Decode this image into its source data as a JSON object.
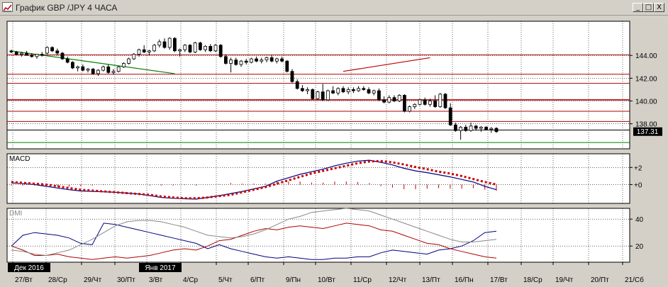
{
  "window": {
    "title": "График GBP /JPY  4 ЧАСА",
    "buttons": {
      "minimize": "_",
      "maximize": "□",
      "close": "X"
    }
  },
  "colors": {
    "up": "#ffffff",
    "down": "#000000",
    "resistance": "#b00000",
    "macd_line": "#000080",
    "signal": "#cc0000",
    "plus_di": "#000080",
    "minus_di": "#b00000",
    "adx": "#888888",
    "trend_green": "#008000",
    "trend_red": "#c00000"
  },
  "chart_data": [
    {
      "type": "candlestick",
      "pair": "GBP/JPY",
      "timeframe": "4 ЧАСА",
      "price_axis": {
        "ticks": [
          138,
          140,
          142,
          144
        ],
        "tick_labels": [
          "138.00",
          "140.00",
          "142.00",
          "144.00"
        ],
        "ylim": [
          135.8,
          147
        ]
      },
      "last_price": "137.31",
      "horizontal_levels": [
        144.05,
        142.35,
        141.55,
        140.1,
        139.1,
        138.2,
        137.45,
        136.35
      ],
      "trend_lines": [
        {
          "x0": 0,
          "y0": 144.4,
          "x1": 32,
          "y1": 142.4,
          "color": "trend_green"
        },
        {
          "x0": 65,
          "y0": 142.6,
          "x1": 82,
          "y1": 143.8,
          "color": "trend_red"
        }
      ],
      "candles": [
        [
          144.4,
          144.5,
          144.2,
          144.3
        ],
        [
          144.3,
          144.4,
          144.0,
          144.1
        ],
        [
          144.1,
          144.3,
          143.9,
          144.2
        ],
        [
          144.2,
          144.4,
          144.0,
          144.0
        ],
        [
          144.0,
          144.2,
          143.8,
          143.9
        ],
        [
          143.9,
          144.1,
          143.7,
          144.1
        ],
        [
          144.1,
          144.3,
          143.9,
          144.0
        ],
        [
          144.2,
          144.8,
          144.1,
          144.7
        ],
        [
          144.7,
          144.8,
          144.3,
          144.4
        ],
        [
          144.4,
          144.6,
          144.0,
          144.2
        ],
        [
          144.2,
          144.3,
          143.6,
          143.7
        ],
        [
          143.7,
          143.9,
          143.3,
          143.4
        ],
        [
          143.4,
          143.5,
          142.8,
          142.9
        ],
        [
          142.9,
          143.1,
          142.6,
          143.0
        ],
        [
          143.0,
          143.2,
          142.6,
          142.7
        ],
        [
          142.7,
          142.9,
          142.5,
          142.8
        ],
        [
          142.8,
          142.9,
          142.3,
          142.4
        ],
        [
          142.4,
          142.8,
          142.2,
          142.7
        ],
        [
          142.7,
          143.1,
          142.6,
          143.0
        ],
        [
          143.0,
          143.2,
          142.4,
          142.5
        ],
        [
          142.5,
          142.8,
          142.3,
          142.6
        ],
        [
          142.6,
          143.1,
          142.5,
          143.0
        ],
        [
          143.0,
          143.4,
          142.9,
          143.3
        ],
        [
          143.3,
          143.8,
          143.2,
          143.7
        ],
        [
          143.7,
          144.2,
          143.6,
          144.1
        ],
        [
          144.1,
          144.6,
          143.9,
          144.5
        ],
        [
          144.5,
          144.9,
          144.2,
          144.3
        ],
        [
          144.3,
          144.5,
          144.0,
          144.4
        ],
        [
          144.4,
          145.0,
          144.3,
          144.9
        ],
        [
          144.9,
          145.4,
          144.7,
          145.2
        ],
        [
          145.2,
          145.5,
          144.6,
          144.7
        ],
        [
          144.7,
          145.6,
          144.5,
          145.5
        ],
        [
          145.5,
          145.6,
          144.3,
          144.4
        ],
        [
          144.4,
          144.6,
          143.9,
          144.5
        ],
        [
          144.5,
          145.0,
          144.3,
          144.9
        ],
        [
          144.9,
          145.0,
          144.2,
          144.3
        ],
        [
          144.3,
          145.2,
          144.2,
          145.1
        ],
        [
          145.1,
          145.2,
          144.4,
          144.5
        ],
        [
          144.5,
          144.9,
          144.3,
          144.8
        ],
        [
          144.8,
          145.0,
          144.3,
          144.4
        ],
        [
          144.4,
          145.0,
          144.3,
          144.9
        ],
        [
          144.9,
          145.0,
          143.8,
          143.9
        ],
        [
          143.9,
          144.1,
          143.2,
          143.3
        ],
        [
          143.3,
          143.8,
          142.5,
          143.6
        ],
        [
          143.6,
          143.8,
          143.1,
          143.2
        ],
        [
          143.2,
          143.6,
          143.0,
          143.5
        ],
        [
          143.5,
          143.7,
          143.2,
          143.4
        ],
        [
          143.4,
          143.8,
          143.3,
          143.7
        ],
        [
          143.7,
          143.9,
          143.4,
          143.5
        ],
        [
          143.5,
          143.8,
          143.3,
          143.6
        ],
        [
          143.6,
          143.9,
          143.4,
          143.8
        ],
        [
          143.8,
          144.0,
          143.4,
          143.5
        ],
        [
          143.5,
          143.8,
          143.3,
          143.7
        ],
        [
          143.7,
          143.9,
          143.4,
          143.5
        ],
        [
          143.5,
          143.6,
          142.5,
          142.6
        ],
        [
          142.6,
          142.8,
          141.6,
          141.7
        ],
        [
          141.7,
          141.9,
          141.0,
          141.1
        ],
        [
          141.1,
          141.4,
          140.8,
          140.9
        ],
        [
          140.9,
          141.2,
          140.6,
          141.0
        ],
        [
          141.0,
          141.1,
          140.1,
          140.2
        ],
        [
          140.2,
          140.9,
          140.1,
          140.8
        ],
        [
          140.8,
          141.5,
          140.0,
          140.1
        ],
        [
          140.1,
          141.0,
          140.0,
          140.9
        ],
        [
          140.9,
          141.3,
          140.6,
          140.7
        ],
        [
          140.7,
          141.2,
          140.5,
          141.1
        ],
        [
          141.1,
          141.3,
          140.7,
          140.8
        ],
        [
          140.8,
          141.2,
          140.6,
          141.0
        ],
        [
          141.0,
          141.2,
          140.7,
          140.9
        ],
        [
          140.9,
          141.3,
          140.8,
          141.1
        ],
        [
          141.1,
          141.3,
          140.9,
          141.0
        ],
        [
          141.0,
          141.2,
          140.6,
          140.7
        ],
        [
          140.7,
          141.0,
          140.5,
          140.9
        ],
        [
          140.9,
          141.1,
          140.0,
          140.1
        ],
        [
          140.1,
          140.4,
          139.8,
          139.9
        ],
        [
          139.9,
          140.5,
          139.8,
          140.3
        ],
        [
          140.3,
          140.5,
          139.9,
          140.0
        ],
        [
          140.0,
          140.6,
          139.9,
          140.5
        ],
        [
          140.5,
          140.6,
          139.0,
          139.1
        ],
        [
          139.1,
          139.6,
          139.0,
          139.5
        ],
        [
          139.5,
          139.8,
          139.3,
          139.7
        ],
        [
          139.7,
          140.2,
          139.6,
          140.1
        ],
        [
          140.1,
          140.3,
          139.6,
          139.7
        ],
        [
          139.7,
          140.2,
          139.5,
          140.0
        ],
        [
          140.0,
          140.5,
          139.4,
          139.5
        ],
        [
          139.5,
          140.7,
          139.4,
          140.6
        ],
        [
          140.6,
          140.7,
          139.3,
          139.4
        ],
        [
          139.4,
          139.8,
          137.8,
          137.9
        ],
        [
          137.9,
          138.1,
          137.3,
          137.4
        ],
        [
          137.4,
          137.8,
          136.6,
          137.7
        ],
        [
          137.7,
          137.9,
          137.3,
          137.4
        ],
        [
          137.4,
          138.1,
          137.3,
          137.8
        ],
        [
          137.8,
          137.9,
          137.4,
          137.6
        ],
        [
          137.6,
          137.8,
          137.3,
          137.7
        ],
        [
          137.7,
          137.8,
          137.4,
          137.5
        ],
        [
          137.5,
          137.7,
          137.2,
          137.6
        ],
        [
          137.6,
          137.7,
          137.2,
          137.31
        ]
      ]
    },
    {
      "type": "line",
      "indicator": "MACD",
      "label": "MACD",
      "ticks": [
        2,
        0
      ],
      "tick_labels": [
        "+2",
        "+0"
      ],
      "ylim": [
        -2.2,
        3.6
      ],
      "series": [
        {
          "values": [
            0.2,
            0.1,
            0.0,
            -0.2,
            -0.4,
            -0.6,
            -0.75,
            -0.8,
            -0.85,
            -0.9,
            -1.0,
            -1.1,
            -1.3,
            -1.5,
            -1.6,
            -1.65,
            -1.7,
            -1.5,
            -1.3,
            -1.05,
            -0.8,
            -0.5,
            -0.2,
            0.4,
            0.8,
            1.2,
            1.5,
            1.8,
            2.2,
            2.5,
            2.75,
            2.85,
            2.6,
            2.3,
            1.9,
            1.6,
            1.4,
            1.15,
            0.9,
            0.6,
            0.3,
            -0.2,
            -0.6
          ]
        },
        {
          "values": [
            0.3,
            0.2,
            0.1,
            0.0,
            -0.2,
            -0.4,
            -0.6,
            -0.7,
            -0.8,
            -0.9,
            -1.0,
            -1.1,
            -1.2,
            -1.4,
            -1.5,
            -1.6,
            -1.6,
            -1.5,
            -1.35,
            -1.2,
            -0.9,
            -0.6,
            -0.3,
            0.1,
            0.5,
            0.9,
            1.3,
            1.6,
            1.9,
            2.2,
            2.5,
            2.7,
            2.75,
            2.6,
            2.35,
            2.05,
            1.8,
            1.5,
            1.3,
            1.0,
            0.65,
            0.3,
            0.0
          ]
        }
      ]
    },
    {
      "type": "line",
      "indicator": "DMI",
      "label": "DMI",
      "ticks": [
        40,
        20
      ],
      "tick_labels": [
        "40",
        "20"
      ],
      "ylim": [
        8,
        48
      ],
      "series": [
        {
          "values": [
            20,
            28,
            30,
            29,
            28,
            26,
            22,
            21,
            37,
            36,
            34,
            32,
            30,
            28,
            26,
            24,
            22,
            18,
            21,
            18,
            16,
            14,
            12,
            11,
            12,
            11,
            10,
            10,
            11,
            11,
            12,
            12,
            15,
            17,
            16,
            15,
            14,
            17,
            18,
            20,
            24,
            30,
            31
          ]
        },
        {
          "values": [
            20,
            17,
            13,
            13,
            14,
            12,
            11,
            10,
            11,
            12,
            11,
            12,
            13,
            15,
            17,
            18,
            17,
            20,
            24,
            25,
            28,
            31,
            33,
            32,
            34,
            35,
            34,
            33,
            35,
            37,
            36,
            35,
            32,
            31,
            28,
            25,
            22,
            21,
            18,
            16,
            14,
            12,
            11
          ]
        },
        {
          "values": [
            17,
            16,
            14,
            13,
            15,
            17,
            21,
            25,
            30,
            35,
            38,
            39,
            39,
            38,
            36,
            34,
            31,
            28,
            27,
            26,
            27,
            29,
            32,
            36,
            40,
            42,
            45,
            46,
            47,
            48,
            47,
            46,
            43,
            40,
            37,
            34,
            31,
            28,
            25,
            23,
            23,
            24,
            25
          ]
        }
      ]
    }
  ],
  "time_axis": {
    "labels": [
      "27/Вт",
      "28/Ср",
      "29/Чт",
      "30/Пт",
      "3/Вт",
      "4/Ср",
      "5/Чт",
      "6/Пт",
      "9/Пн",
      "10/Вт",
      "11/Ср",
      "12/Чт",
      "13/Пт",
      "16/Пн",
      "17/Вт",
      "18/Ср",
      "19/Чт",
      "20/Пт",
      "21/Сб"
    ],
    "year_flags": [
      "Дек 2016",
      "Янв 2017"
    ]
  }
}
